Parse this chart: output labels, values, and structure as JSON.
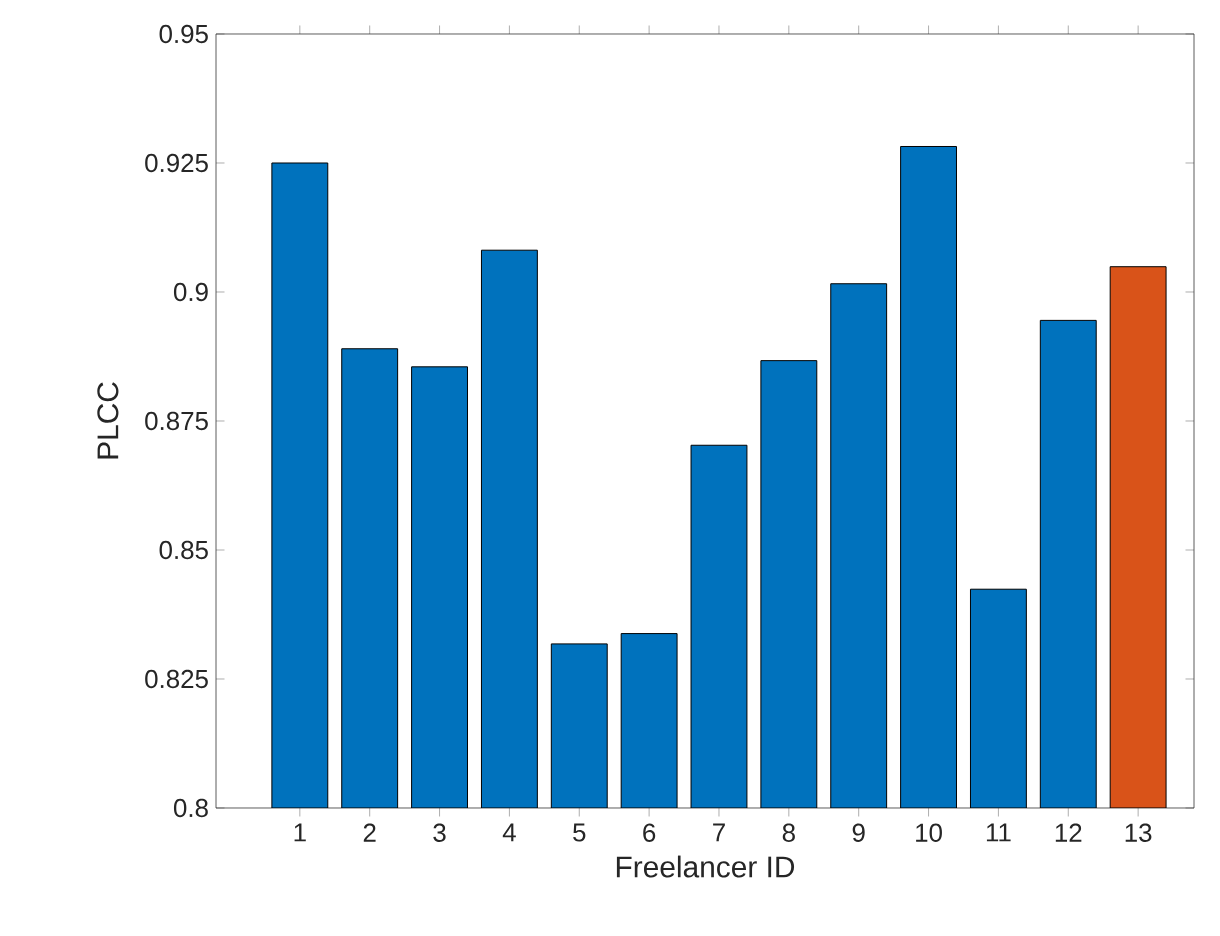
{
  "chart_data": {
    "type": "bar",
    "xlabel": "Freelancer ID",
    "ylabel": "PLCC",
    "categories": [
      "1",
      "2",
      "3",
      "4",
      "5",
      "6",
      "7",
      "8",
      "9",
      "10",
      "11",
      "12",
      "13"
    ],
    "values": [
      0.925,
      0.889,
      0.8855,
      0.9081,
      0.8318,
      0.8338,
      0.8703,
      0.8867,
      0.9016,
      0.9282,
      0.8424,
      0.8945,
      0.9049
    ],
    "colors": [
      "#0072bd",
      "#0072bd",
      "#0072bd",
      "#0072bd",
      "#0072bd",
      "#0072bd",
      "#0072bd",
      "#0072bd",
      "#0072bd",
      "#0072bd",
      "#0072bd",
      "#0072bd",
      "#d95319"
    ],
    "ylim": [
      0.8,
      0.95
    ],
    "yticks": [
      0.8,
      0.825,
      0.85,
      0.875,
      0.9,
      0.925,
      0.95
    ],
    "grid": false
  }
}
